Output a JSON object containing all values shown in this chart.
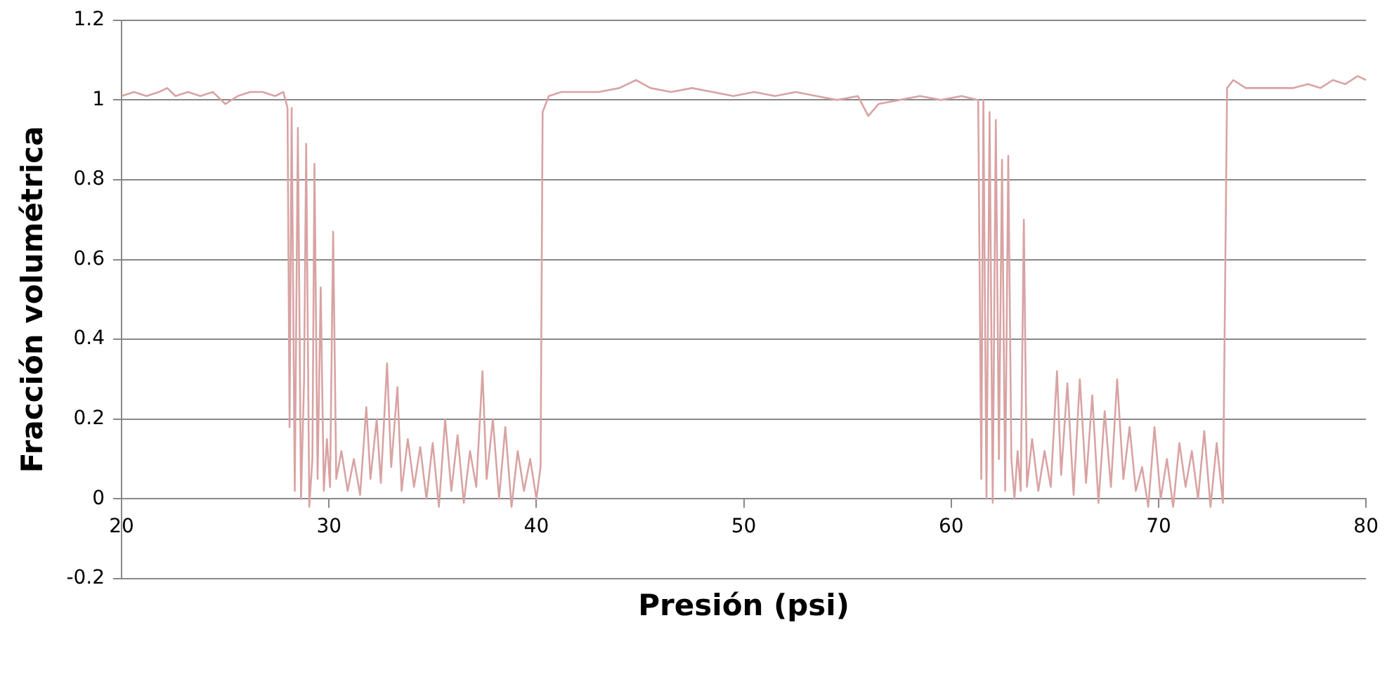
{
  "chart_data": {
    "type": "line",
    "xlabel": "Presión (psi)",
    "ylabel": "Fracción volumétrica",
    "xlim": [
      20,
      80
    ],
    "xticks": [
      20,
      30,
      40,
      50,
      60,
      70,
      80
    ],
    "ylim": [
      -0.2,
      1.2
    ],
    "yticks": [
      -0.2,
      0,
      0.2,
      0.4,
      0.6,
      0.8,
      1,
      1.2
    ],
    "grid": "y",
    "legend": false,
    "marker": "none",
    "line_style": "solid",
    "series": [
      {
        "color": "#d9a3a3",
        "x": [
          20,
          20.6,
          21.2,
          21.8,
          22.2,
          22.6,
          23.2,
          23.8,
          24.4,
          25,
          25.6,
          26.2,
          26.8,
          27.4,
          27.8,
          28,
          28.1,
          28.2,
          28.35,
          28.5,
          28.65,
          28.8,
          28.9,
          29.05,
          29.2,
          29.3,
          29.45,
          29.6,
          29.75,
          29.9,
          30.05,
          30.2,
          30.35,
          30.6,
          30.9,
          31.2,
          31.5,
          31.8,
          32,
          32.3,
          32.5,
          32.8,
          33,
          33.3,
          33.5,
          33.8,
          34.1,
          34.4,
          34.7,
          35,
          35.3,
          35.6,
          35.9,
          36.2,
          36.5,
          36.8,
          37.1,
          37.4,
          37.6,
          37.9,
          38.2,
          38.5,
          38.8,
          39.1,
          39.4,
          39.7,
          40,
          40.2,
          40.3,
          40.6,
          41.2,
          42,
          43,
          44,
          44.8,
          45.5,
          46.5,
          47.5,
          48.5,
          49.5,
          50.5,
          51.5,
          52.5,
          53.5,
          54.5,
          55.5,
          56,
          56.5,
          57.5,
          58.5,
          59.5,
          60.5,
          61.3,
          61.45,
          61.55,
          61.7,
          61.85,
          62,
          62.15,
          62.3,
          62.45,
          62.6,
          62.75,
          62.9,
          63.05,
          63.2,
          63.35,
          63.5,
          63.65,
          63.9,
          64.2,
          64.5,
          64.8,
          65.1,
          65.3,
          65.6,
          65.9,
          66.2,
          66.5,
          66.8,
          67.1,
          67.4,
          67.7,
          68,
          68.3,
          68.6,
          68.9,
          69.2,
          69.5,
          69.8,
          70.1,
          70.4,
          70.7,
          71,
          71.3,
          71.6,
          71.9,
          72.2,
          72.5,
          72.8,
          73.1,
          73.3,
          73.6,
          74.2,
          75,
          75.8,
          76.5,
          77.2,
          77.8,
          78.4,
          79,
          79.6,
          80
        ],
        "values": [
          1.01,
          1.02,
          1.01,
          1.02,
          1.03,
          1.01,
          1.02,
          1.01,
          1.02,
          0.99,
          1.01,
          1.02,
          1.02,
          1.01,
          1.02,
          0.98,
          0.18,
          0.98,
          0.02,
          0.93,
          0,
          0.3,
          0.89,
          -0.02,
          0.1,
          0.84,
          0.05,
          0.53,
          0.02,
          0.15,
          0.03,
          0.67,
          0.05,
          0.12,
          0.02,
          0.1,
          0.01,
          0.23,
          0.05,
          0.2,
          0.04,
          0.34,
          0.08,
          0.28,
          0.02,
          0.15,
          0.03,
          0.13,
          0,
          0.14,
          -0.02,
          0.2,
          0.02,
          0.16,
          -0.01,
          0.12,
          0.03,
          0.32,
          0.05,
          0.2,
          0,
          0.18,
          -0.02,
          0.12,
          0.02,
          0.1,
          0,
          0.08,
          0.97,
          1.01,
          1.02,
          1.02,
          1.02,
          1.03,
          1.05,
          1.03,
          1.02,
          1.03,
          1.02,
          1.01,
          1.02,
          1.01,
          1.02,
          1.01,
          1,
          1.01,
          0.96,
          0.99,
          1,
          1.01,
          1,
          1.01,
          1,
          0.05,
          1,
          0,
          0.97,
          -0.01,
          0.95,
          0.1,
          0.85,
          0.02,
          0.86,
          0.1,
          0,
          0.12,
          0.02,
          0.7,
          0.03,
          0.15,
          0.02,
          0.12,
          0.03,
          0.32,
          0.06,
          0.29,
          0.01,
          0.3,
          0.04,
          0.26,
          -0.01,
          0.22,
          0.03,
          0.3,
          0.05,
          0.18,
          0.02,
          0.08,
          -0.02,
          0.18,
          0,
          0.1,
          -0.02,
          0.14,
          0.03,
          0.12,
          0,
          0.17,
          -0.02,
          0.14,
          -0.01,
          1.03,
          1.05,
          1.03,
          1.03,
          1.03,
          1.03,
          1.04,
          1.03,
          1.05,
          1.04,
          1.06,
          1.05
        ]
      }
    ]
  }
}
